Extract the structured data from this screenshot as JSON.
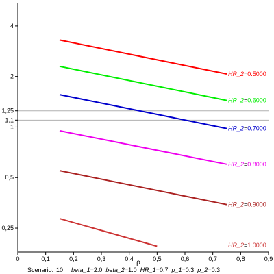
{
  "chart_data": {
    "type": "line",
    "xlabel": "ρ",
    "ylabel": "",
    "xlim": [
      0,
      0.9
    ],
    "ylim": [
      0.18,
      5.5
    ],
    "y_scale": "log",
    "x_ticks": [
      {
        "value": 0,
        "label": "0"
      },
      {
        "value": 0.1,
        "label": "0,1"
      },
      {
        "value": 0.2,
        "label": "0,2"
      },
      {
        "value": 0.3,
        "label": "0,3"
      },
      {
        "value": 0.4,
        "label": "0,4"
      },
      {
        "value": 0.5,
        "label": "0,5"
      },
      {
        "value": 0.6,
        "label": "0,6"
      },
      {
        "value": 0.7,
        "label": "0,7"
      },
      {
        "value": 0.8,
        "label": "0,8"
      },
      {
        "value": 0.9,
        "label": "0,9"
      }
    ],
    "y_ticks": [
      {
        "value": 0.25,
        "label": "0,25"
      },
      {
        "value": 0.5,
        "label": "0,5"
      },
      {
        "value": 1,
        "label": "1"
      },
      {
        "value": 1.1,
        "label": "1,1"
      },
      {
        "value": 1.25,
        "label": "1,25"
      },
      {
        "value": 2,
        "label": "2"
      },
      {
        "value": 4,
        "label": "4"
      }
    ],
    "reference_lines": [
      1.1,
      1.25
    ],
    "label_prefix": "HR_2",
    "series": [
      {
        "name": "0.5000",
        "color": "#ff0000",
        "x": [
          0.15,
          0.75
        ],
        "y": [
          3.3,
          2.07
        ]
      },
      {
        "name": "0.6000",
        "color": "#00ee00",
        "x": [
          0.15,
          0.75
        ],
        "y": [
          2.3,
          1.44
        ]
      },
      {
        "name": "0.7000",
        "color": "#0000cc",
        "x": [
          0.15,
          0.75
        ],
        "y": [
          1.56,
          0.98
        ]
      },
      {
        "name": "0.8000",
        "color": "#ee00ee",
        "x": [
          0.15,
          0.75
        ],
        "y": [
          0.95,
          0.6
        ]
      },
      {
        "name": "0.9000",
        "color": "#aa2222",
        "x": [
          0.15,
          0.75
        ],
        "y": [
          0.55,
          0.345
        ]
      },
      {
        "name": "1.0000",
        "color": "#cc3333",
        "x": [
          0.15,
          0.5
        ],
        "y": [
          0.285,
          0.195
        ]
      }
    ],
    "caption": {
      "scenario_label": "Scenario:",
      "scenario_value": "10",
      "params": [
        {
          "name": "beta_1",
          "value": "2.0"
        },
        {
          "name": "beta_2",
          "value": "1.0"
        },
        {
          "name": "HR_1",
          "value": "0.7"
        },
        {
          "name": "p_1",
          "value": "0.3"
        },
        {
          "name": "p_2",
          "value": "0.3"
        }
      ]
    }
  }
}
